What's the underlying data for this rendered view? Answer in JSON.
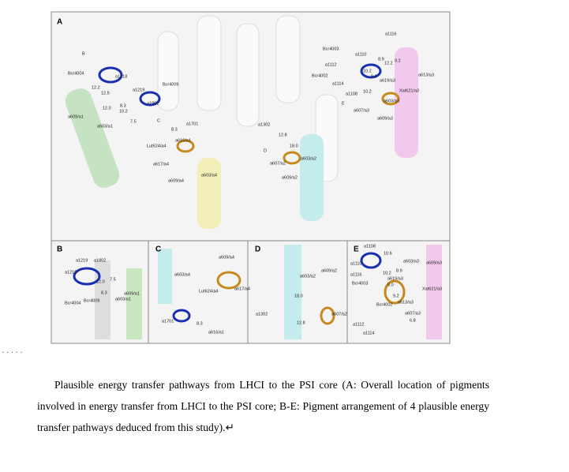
{
  "figure": {
    "panels": [
      {
        "label": "A",
        "labels": [
          "B",
          "Bcr4004",
          "a1218",
          "12.2",
          "12.5",
          "Bcr4009",
          "a1219",
          "a1802",
          "12.0",
          "8.3",
          "10.2",
          "7.5",
          "a609/a1",
          "a603/a1",
          "C",
          "8.3",
          "a1701",
          "a616/a1",
          "Lut624/a4",
          "a617/a4",
          "a609/a4",
          "a603/a4",
          "a1302",
          "12.8",
          "D",
          "18.0",
          "a607/a2",
          "a603/a2",
          "a609/a2",
          "a1116",
          "Bcr4003",
          "a1110",
          "8.9",
          "12.2",
          "9.2",
          "a1112",
          "10.2",
          "a613/a3",
          "Bcr4002",
          "8.0",
          "a619/a3",
          "a1114",
          "Xat621/a3",
          "a1108",
          "10.2",
          "a603/a3",
          "E",
          "a607/a3",
          "a609/a3"
        ]
      },
      {
        "label": "B",
        "labels": [
          "a1219",
          "a1802",
          "a1218",
          "12.0",
          "7.5",
          "8.3",
          "a609/a1",
          "a603/a1",
          "Bcr4004",
          "Bcr4009"
        ]
      },
      {
        "label": "C",
        "labels": [
          "a609/a4",
          "a603/a4",
          "Lut624/a4",
          "a617/a4",
          "a1701",
          "8.3",
          "a616/a1"
        ]
      },
      {
        "label": "D",
        "labels": [
          "a609/a2",
          "a603/a2",
          "18.0",
          "a1302",
          "12.8",
          "a607/a2"
        ]
      },
      {
        "label": "E",
        "labels": [
          "a1108",
          "10.6",
          "a1110",
          "a603/a3",
          "a609/a3",
          "8.9",
          "10.2",
          "a1116",
          "a619/a3",
          "Bcr4003",
          "8.0",
          "Xat621/a3",
          "Bcr4002",
          "9.2",
          "a613/a3",
          "a607/a3",
          "6.8",
          "a1112",
          "a1114"
        ]
      }
    ]
  },
  "marker": "· · · · ·",
  "caption": "Plausible energy transfer pathways from LHCI to the PSI core (A: Overall location of pigments involved in energy transfer from LHCI to the PSI core; B-E: Pigment arrangement of 4 plausible energy transfer pathways deduced from this study).↵"
}
